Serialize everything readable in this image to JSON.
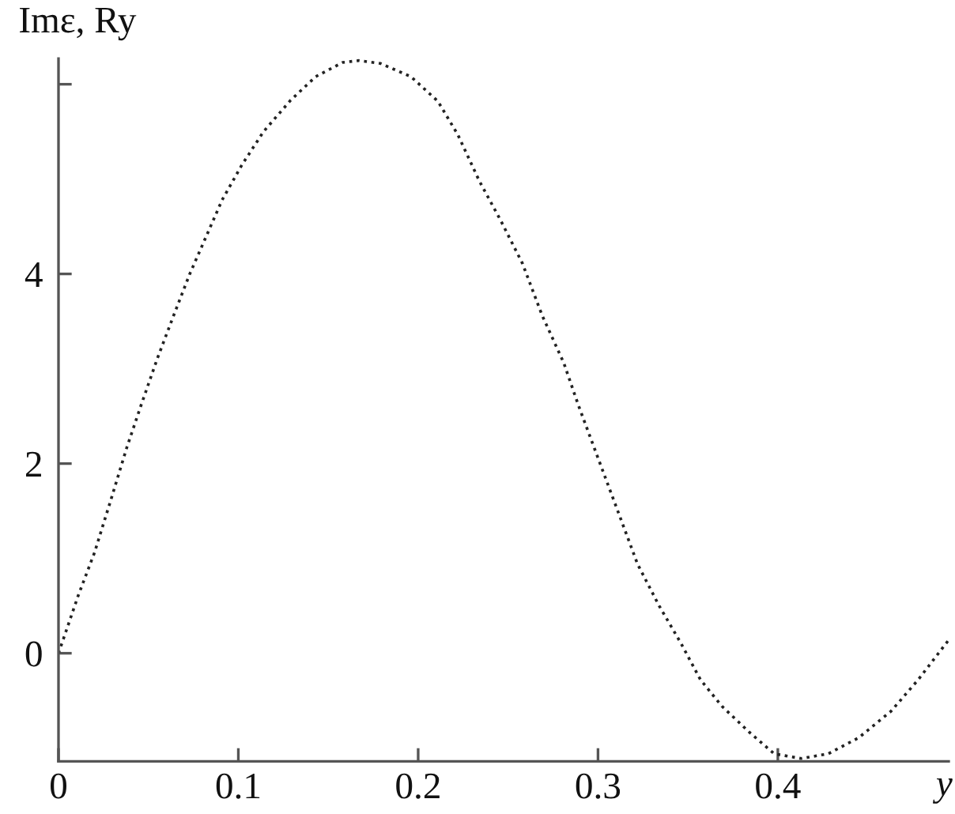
{
  "chart_data": {
    "type": "line",
    "xlabel": "y",
    "ylabel": "Imε, Ry",
    "xlim": [
      0,
      0.495
    ],
    "ylim": [
      -1.14,
      6.27
    ],
    "xticks": [
      0,
      0.1,
      0.2,
      0.3,
      0.4
    ],
    "yticks": [
      0,
      2,
      4,
      {
        "value": 6,
        "label": null
      }
    ],
    "grid": false,
    "line_style": "dotted",
    "series": [
      {
        "color": "#222222",
        "x": [
          0,
          0.011,
          0.02,
          0.029,
          0.038,
          0.046,
          0.055,
          0.064,
          0.073,
          0.082,
          0.091,
          0.102,
          0.114,
          0.129,
          0.143,
          0.158,
          0.167,
          0.179,
          0.196,
          0.211,
          0.222,
          0.234,
          0.246,
          0.258,
          0.269,
          0.281,
          0.289,
          0.299,
          0.311,
          0.322,
          0.334,
          0.346,
          0.357,
          0.369,
          0.384,
          0.398,
          0.413,
          0.428,
          0.445,
          0.463,
          0.478,
          0.495
        ],
        "values": [
          0,
          0.61,
          1.06,
          1.61,
          2.17,
          2.62,
          3.11,
          3.56,
          4.0,
          4.39,
          4.78,
          5.15,
          5.5,
          5.83,
          6.08,
          6.23,
          6.25,
          6.22,
          6.08,
          5.82,
          5.47,
          4.98,
          4.56,
          4.11,
          3.56,
          3.06,
          2.62,
          2.11,
          1.5,
          0.94,
          0.5,
          0.11,
          -0.28,
          -0.56,
          -0.83,
          -1.06,
          -1.11,
          -1.06,
          -0.89,
          -0.61,
          -0.28,
          0.14
        ]
      }
    ]
  }
}
